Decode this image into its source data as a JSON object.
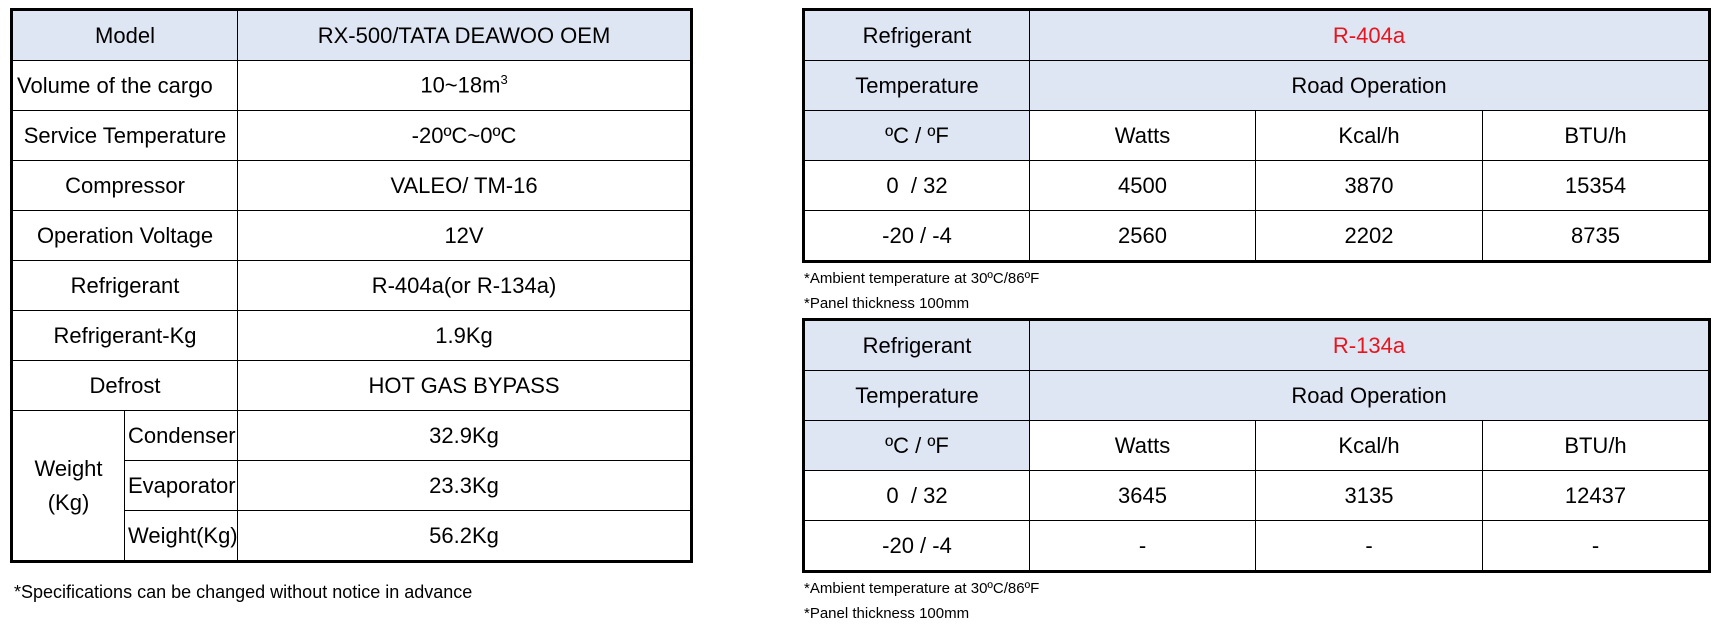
{
  "spec": {
    "rows": [
      {
        "label": "Model",
        "value": "RX-500/TATA DEAWOO OEM"
      },
      {
        "label": "Volume of the cargo",
        "value_base": "10~18m",
        "value_sup": "3"
      },
      {
        "label": "Service Temperature",
        "value": "-20ºC~0ºC"
      },
      {
        "label": "Compressor",
        "value": "VALEO/ TM-16"
      },
      {
        "label": "Operation Voltage",
        "value": "12V"
      },
      {
        "label": "Refrigerant",
        "value": "R-404a(or R-134a)"
      },
      {
        "label": "Refrigerant-Kg",
        "value": "1.9Kg"
      },
      {
        "label": "Defrost",
        "value": "HOT GAS BYPASS"
      }
    ],
    "weight": {
      "label_line1": "Weight",
      "label_line2": "(Kg)",
      "items": [
        {
          "label": "Condenser",
          "value": "32.9Kg"
        },
        {
          "label": "Evaporator",
          "value": "23.3Kg"
        },
        {
          "label": "Weight(Kg)",
          "value": "56.2Kg"
        }
      ]
    },
    "note": "*Specifications can be changed without notice in advance"
  },
  "perf1": {
    "refrigerant_label": "Refrigerant",
    "refrigerant": "R-404a",
    "temperature_label": "Temperature",
    "operation": "Road Operation",
    "headers": [
      "ºC / ºF",
      "Watts",
      "Kcal/h",
      "BTU/h"
    ],
    "rows": [
      [
        "0  / 32",
        "4500",
        "3870",
        "15354"
      ],
      [
        "-20 / -4",
        "2560",
        "2202",
        "8735"
      ]
    ],
    "note1": "*Ambient temperature at 30ºC/86ºF",
    "note2": "*Panel thickness 100mm"
  },
  "perf2": {
    "refrigerant_label": "Refrigerant",
    "refrigerant": "R-134a",
    "temperature_label": "Temperature",
    "operation": "Road Operation",
    "headers": [
      "ºC / ºF",
      "Watts",
      "Kcal/h",
      "BTU/h"
    ],
    "rows": [
      [
        "0  / 32",
        "3645",
        "3135",
        "12437"
      ],
      [
        "-20 / -4",
        "-",
        "-",
        "-"
      ]
    ],
    "note1": "*Ambient temperature at 30ºC/86ºF",
    "note2": "*Panel thickness 100mm"
  },
  "colors": {
    "header_fill": "#dfe6f3",
    "refrigerant_text": "#e8141e",
    "border": "#000000"
  }
}
